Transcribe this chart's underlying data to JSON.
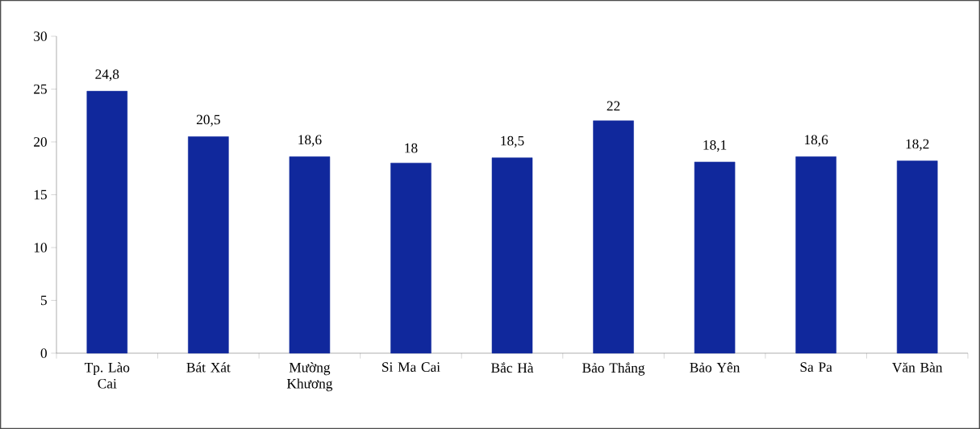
{
  "chart_data": {
    "type": "bar",
    "categories": [
      "Tp. Lào Cai",
      "Bát Xát",
      "Mường Khương",
      "Si Ma Cai",
      "Bắc Hà",
      "Bảo Thắng",
      "Bảo Yên",
      "Sa Pa",
      "Văn Bàn"
    ],
    "values": [
      24.8,
      20.5,
      18.6,
      18,
      18.5,
      22,
      18.1,
      18.6,
      18.2
    ],
    "value_labels": [
      "24,8",
      "20,5",
      "18,6",
      "18",
      "18,5",
      "22",
      "18,1",
      "18,6",
      "18,2"
    ],
    "color": "#10289c",
    "ylim": [
      0,
      30
    ],
    "yticks": [
      0,
      5,
      10,
      15,
      20,
      25,
      30
    ],
    "grid": false
  }
}
